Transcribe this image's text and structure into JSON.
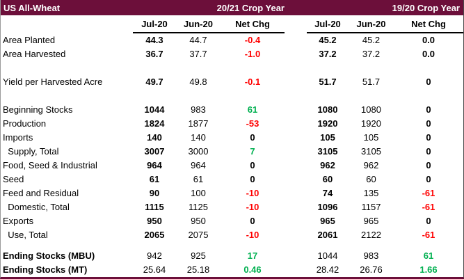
{
  "colors": {
    "header_bg": "#6C0F3A",
    "header_text": "#FFFFFF",
    "positive": "#00B050",
    "negative": "#FF0000",
    "neutral": "#000000"
  },
  "chart_data": {
    "type": "table",
    "title": "US All-Wheat",
    "groups": [
      {
        "label": "20/21 Crop Year",
        "columns": [
          "Jul-20",
          "Jun-20",
          "Net Chg"
        ]
      },
      {
        "label": "19/20 Crop Year",
        "columns": [
          "Jul-20",
          "Jun-20",
          "Net Chg"
        ]
      }
    ],
    "rows": [
      {
        "label": "Area Planted",
        "values": [
          "44.3",
          "44.7",
          "-0.4",
          "45.2",
          "45.2",
          "0.0"
        ]
      },
      {
        "label": "Area Harvested",
        "values": [
          "36.7",
          "37.7",
          "-1.0",
          "37.2",
          "37.2",
          "0.0"
        ]
      },
      {
        "spacer": true
      },
      {
        "label": "Yield per Harvested Acre",
        "values": [
          "49.7",
          "49.8",
          "-0.1",
          "51.7",
          "51.7",
          "0"
        ]
      },
      {
        "spacer": true
      },
      {
        "label": "Beginning Stocks",
        "values": [
          "1044",
          "983",
          "61",
          "1080",
          "1080",
          "0"
        ]
      },
      {
        "label": "Production",
        "values": [
          "1824",
          "1877",
          "-53",
          "1920",
          "1920",
          "0"
        ]
      },
      {
        "label": "Imports",
        "values": [
          "140",
          "140",
          "0",
          "105",
          "105",
          "0"
        ]
      },
      {
        "label": "  Supply, Total",
        "values": [
          "3007",
          "3000",
          "7",
          "3105",
          "3105",
          "0"
        ]
      },
      {
        "label": "Food, Seed & Industrial",
        "values": [
          "964",
          "964",
          "0",
          "962",
          "962",
          "0"
        ]
      },
      {
        "label": "Seed",
        "values": [
          "61",
          "61",
          "0",
          "60",
          "60",
          "0"
        ]
      },
      {
        "label": "Feed and Residual",
        "values": [
          "90",
          "100",
          "-10",
          "74",
          "135",
          "-61"
        ]
      },
      {
        "label": "  Domestic, Total",
        "values": [
          "1115",
          "1125",
          "-10",
          "1096",
          "1157",
          "-61"
        ]
      },
      {
        "label": "Exports",
        "values": [
          "950",
          "950",
          "0",
          "965",
          "965",
          "0"
        ]
      },
      {
        "label": "  Use, Total",
        "values": [
          "2065",
          "2075",
          "-10",
          "2061",
          "2122",
          "-61"
        ]
      },
      {
        "spacer": true,
        "small": true
      },
      {
        "label": "Ending Stocks (MBU)",
        "values": [
          "942",
          "925",
          "17",
          "1044",
          "983",
          "61"
        ],
        "bold_label": true,
        "plain_jul": true
      },
      {
        "label": "Ending Stocks (MT)",
        "values": [
          "25.64",
          "25.18",
          "0.46",
          "28.42",
          "26.76",
          "1.66"
        ],
        "bold_label": true,
        "plain_jul": true
      }
    ]
  }
}
